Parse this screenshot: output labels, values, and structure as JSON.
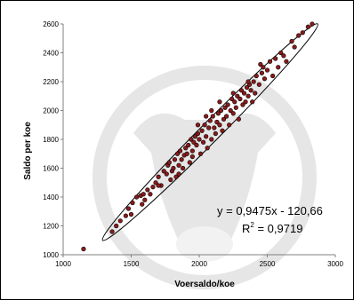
{
  "chart_data": {
    "type": "scatter",
    "title": "",
    "xlabel": "Voersaldo/koe",
    "ylabel": "Saldo per koe",
    "xlim": [
      1000,
      3000
    ],
    "ylim": [
      1000,
      2600
    ],
    "xticks": [
      "1000",
      "1500",
      "2000",
      "2500",
      "3000"
    ],
    "yticks": [
      "1000",
      "1200",
      "1400",
      "1600",
      "1800",
      "2000",
      "2200",
      "2400",
      "2600"
    ],
    "grid": false,
    "legend": "none",
    "watermark": "cow-head-logo",
    "colors": {
      "point_fill": "#8b1a1a",
      "point_stroke": "#000000",
      "axis": "#808080",
      "ellipse": "#000000",
      "watermark": "#e6e6e6"
    },
    "annotation": {
      "equation": "y = 0,9475x - 120,66",
      "r2_label": "R",
      "r2_sup": "2",
      "r2_value": " = 0,9719"
    },
    "ellipse_ends": [
      [
        1290,
        1100
      ],
      [
        2870,
        2600
      ]
    ],
    "series": [
      {
        "points": [
          [
            1150,
            1040
          ],
          [
            1360,
            1160
          ],
          [
            1390,
            1200
          ],
          [
            1420,
            1235
          ],
          [
            1460,
            1270
          ],
          [
            1480,
            1320
          ],
          [
            1500,
            1280
          ],
          [
            1510,
            1360
          ],
          [
            1540,
            1400
          ],
          [
            1570,
            1410
          ],
          [
            1580,
            1350
          ],
          [
            1590,
            1420
          ],
          [
            1620,
            1450
          ],
          [
            1640,
            1420
          ],
          [
            1660,
            1470
          ],
          [
            1680,
            1500
          ],
          [
            1700,
            1540
          ],
          [
            1720,
            1480
          ],
          [
            1740,
            1580
          ],
          [
            1760,
            1560
          ],
          [
            1770,
            1620
          ],
          [
            1780,
            1640
          ],
          [
            1790,
            1520
          ],
          [
            1800,
            1580
          ],
          [
            1810,
            1600
          ],
          [
            1820,
            1660
          ],
          [
            1830,
            1540
          ],
          [
            1840,
            1700
          ],
          [
            1850,
            1620
          ],
          [
            1860,
            1720
          ],
          [
            1870,
            1660
          ],
          [
            1880,
            1600
          ],
          [
            1890,
            1690
          ],
          [
            1900,
            1740
          ],
          [
            1910,
            1700
          ],
          [
            1920,
            1760
          ],
          [
            1930,
            1640
          ],
          [
            1940,
            1800
          ],
          [
            1950,
            1720
          ],
          [
            1960,
            1780
          ],
          [
            1970,
            1820
          ],
          [
            1980,
            1760
          ],
          [
            1990,
            1840
          ],
          [
            2000,
            1800
          ],
          [
            2010,
            1700
          ],
          [
            2020,
            1860
          ],
          [
            2030,
            1780
          ],
          [
            2040,
            1900
          ],
          [
            2050,
            1820
          ],
          [
            2060,
            1740
          ],
          [
            2070,
            1880
          ],
          [
            2080,
            1930
          ],
          [
            2090,
            1800
          ],
          [
            2100,
            1960
          ],
          [
            2110,
            1880
          ],
          [
            2120,
            1840
          ],
          [
            2130,
            1920
          ],
          [
            2140,
            1980
          ],
          [
            2150,
            1900
          ],
          [
            2160,
            2000
          ],
          [
            2170,
            1860
          ],
          [
            2180,
            1940
          ],
          [
            2190,
            2020
          ],
          [
            2200,
            1960
          ],
          [
            2210,
            2040
          ],
          [
            2220,
            1900
          ],
          [
            2230,
            2000
          ],
          [
            2240,
            2080
          ],
          [
            2250,
            1980
          ],
          [
            2260,
            2060
          ],
          [
            2270,
            2020
          ],
          [
            2280,
            2100
          ],
          [
            2290,
            1940
          ],
          [
            2300,
            2080
          ],
          [
            2310,
            2140
          ],
          [
            2320,
            2040
          ],
          [
            2330,
            2120
          ],
          [
            2340,
            2060
          ],
          [
            2350,
            2160
          ],
          [
            2360,
            2100
          ],
          [
            2370,
            2180
          ],
          [
            2380,
            2140
          ],
          [
            2390,
            2060
          ],
          [
            2400,
            2200
          ],
          [
            2410,
            2120
          ],
          [
            2420,
            2240
          ],
          [
            2440,
            2180
          ],
          [
            2460,
            2260
          ],
          [
            2470,
            2300
          ],
          [
            2480,
            2220
          ],
          [
            2500,
            2280
          ],
          [
            2520,
            2340
          ],
          [
            2540,
            2240
          ],
          [
            2560,
            2360
          ],
          [
            2580,
            2300
          ],
          [
            2600,
            2400
          ],
          [
            2620,
            2380
          ],
          [
            2640,
            2340
          ],
          [
            2680,
            2480
          ],
          [
            2700,
            2440
          ],
          [
            2730,
            2520
          ],
          [
            2760,
            2540
          ],
          [
            2800,
            2580
          ],
          [
            2830,
            2600
          ],
          [
            1850,
            1560
          ],
          [
            1950,
            1680
          ],
          [
            2050,
            1960
          ],
          [
            2150,
            2060
          ],
          [
            2250,
            2120
          ],
          [
            1700,
            1480
          ],
          [
            1600,
            1380
          ],
          [
            2360,
            2200
          ],
          [
            2450,
            2320
          ],
          [
            1990,
            1900
          ],
          [
            2090,
            2000
          ]
        ]
      }
    ]
  }
}
